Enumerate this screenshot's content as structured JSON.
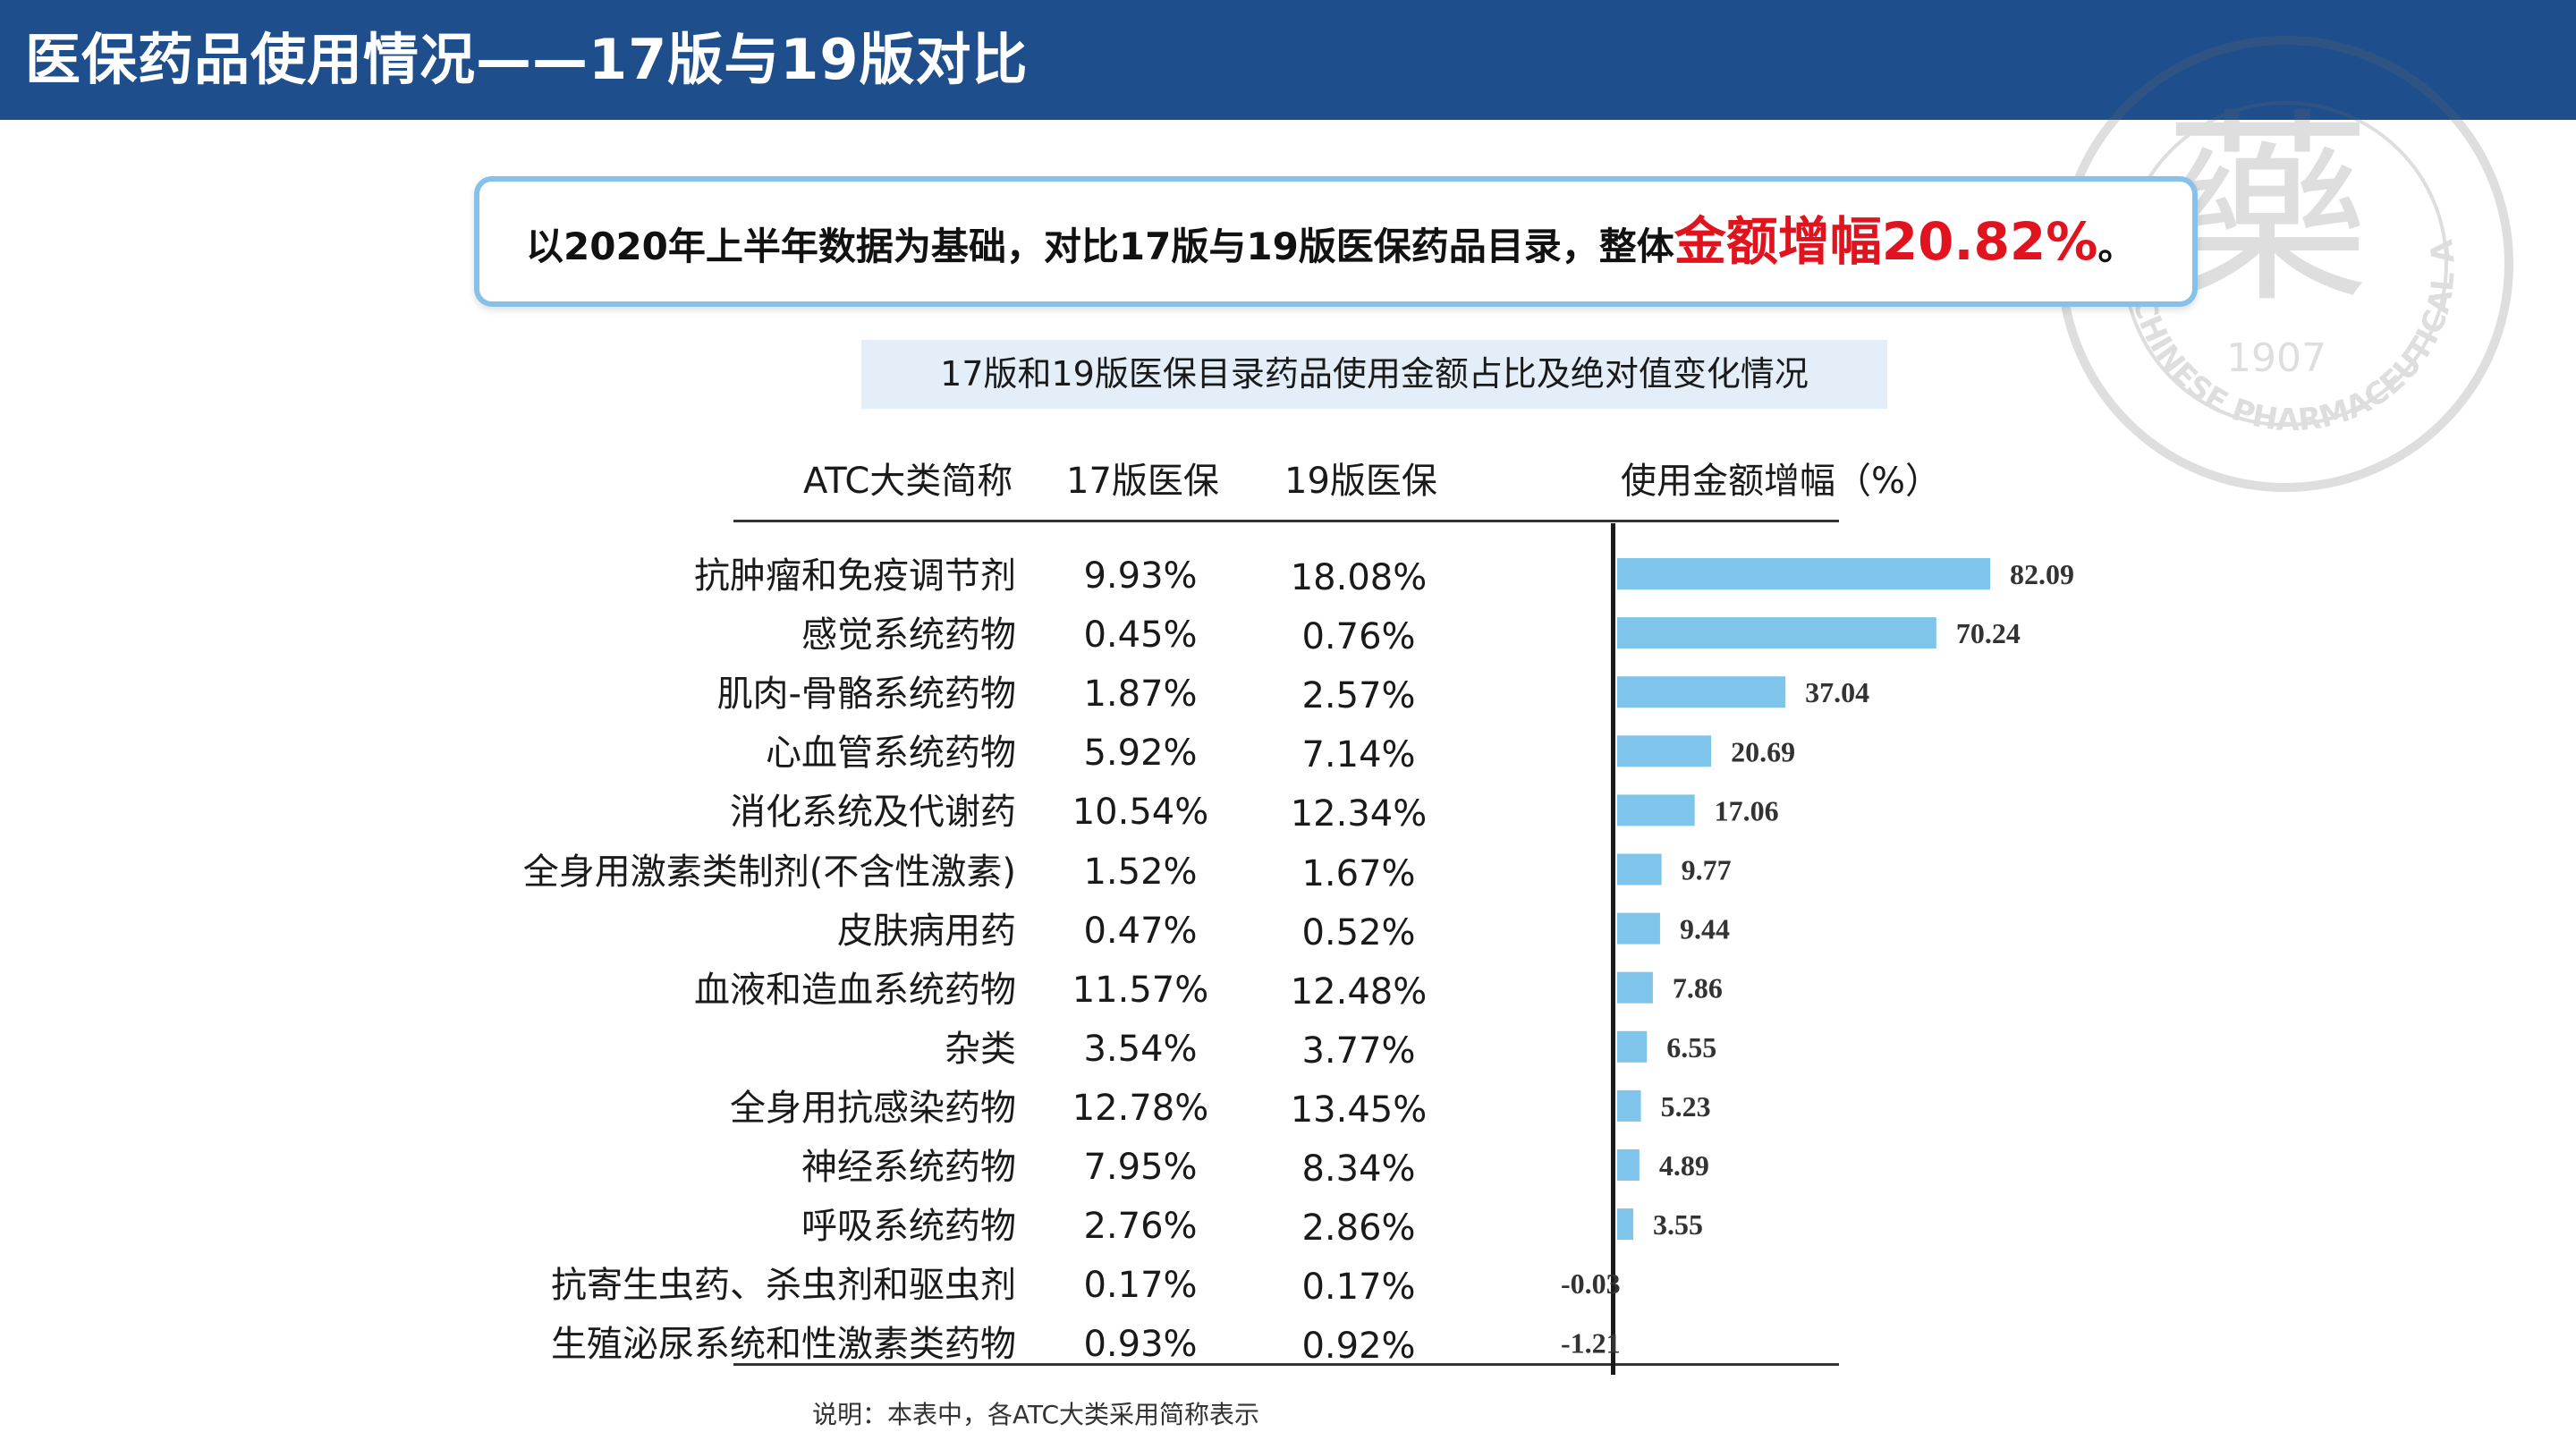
{
  "header": {
    "title": "医保药品使用情况——17版与19版对比"
  },
  "summary": {
    "text": "以2020年上半年数据为基础，对比17版与19版医保药品目录，整体",
    "highlight": "金额增幅20.82%",
    "end": "。"
  },
  "subtitle": "17版和19版医保目录药品使用金额占比及绝对值变化情况",
  "columns": {
    "category": "ATC大类简称",
    "v17": "17版医保",
    "v19": "19版医保",
    "growth": "使用金额增幅（%）"
  },
  "rows": [
    {
      "category": "抗肿瘤和免疫调节剂",
      "v17": "9.93%",
      "v19": "18.08%"
    },
    {
      "category": "感觉系统药物",
      "v17": "0.45%",
      "v19": "0.76%"
    },
    {
      "category": "肌肉-骨骼系统药物",
      "v17": "1.87%",
      "v19": "2.57%"
    },
    {
      "category": "心血管系统药物",
      "v17": "5.92%",
      "v19": "7.14%"
    },
    {
      "category": "消化系统及代谢药",
      "v17": "10.54%",
      "v19": "12.34%"
    },
    {
      "category": "全身用激素类制剂(不含性激素)",
      "v17": "1.52%",
      "v19": "1.67%"
    },
    {
      "category": "皮肤病用药",
      "v17": "0.47%",
      "v19": "0.52%"
    },
    {
      "category": "血液和造血系统药物",
      "v17": "11.57%",
      "v19": "12.48%"
    },
    {
      "category": "杂类",
      "v17": "3.54%",
      "v19": "3.77%"
    },
    {
      "category": "全身用抗感染药物",
      "v17": "12.78%",
      "v19": "13.45%"
    },
    {
      "category": "神经系统药物",
      "v17": "7.95%",
      "v19": "8.34%"
    },
    {
      "category": "呼吸系统药物",
      "v17": "2.76%",
      "v19": "2.86%"
    },
    {
      "category": "抗寄生虫药、杀虫剂和驱虫剂",
      "v17": "0.17%",
      "v19": "0.17%"
    },
    {
      "category": "生殖泌尿系统和性激素类药物",
      "v17": "0.93%",
      "v19": "0.92%"
    }
  ],
  "chart_data": {
    "type": "bar",
    "orientation": "horizontal",
    "title": "",
    "xlabel": "使用金额增幅（%）",
    "categories": [
      "抗肿瘤和免疫调节剂",
      "感觉系统药物",
      "肌肉-骨骼系统药物",
      "心血管系统药物",
      "消化系统及代谢药",
      "全身用激素类制剂(不含性激素)",
      "皮肤病用药",
      "血液和造血系统药物",
      "杂类",
      "全身用抗感染药物",
      "神经系统药物",
      "呼吸系统药物",
      "抗寄生虫药、杀虫剂和驱虫剂",
      "生殖泌尿系统和性激素类药物"
    ],
    "values": [
      82.09,
      70.24,
      37.04,
      20.69,
      17.06,
      9.77,
      9.44,
      7.86,
      6.55,
      5.23,
      4.89,
      3.55,
      -0.03,
      -1.21
    ],
    "labels": [
      "82.09",
      "70.24",
      "37.04",
      "20.69",
      "17.06",
      "9.77",
      "9.44",
      "7.86",
      "6.55",
      "5.23",
      "4.89",
      "3.55",
      "-0.03",
      "-1.21"
    ],
    "bar_color": "#7fc4ea",
    "grid": false
  },
  "footnote": "说明：本表中，各ATC大类采用简称表示",
  "seal": {
    "char": "藥",
    "year": "1907",
    "ring_text": "CHINESE PHARMACEUTICAL ASSOCIATION"
  }
}
